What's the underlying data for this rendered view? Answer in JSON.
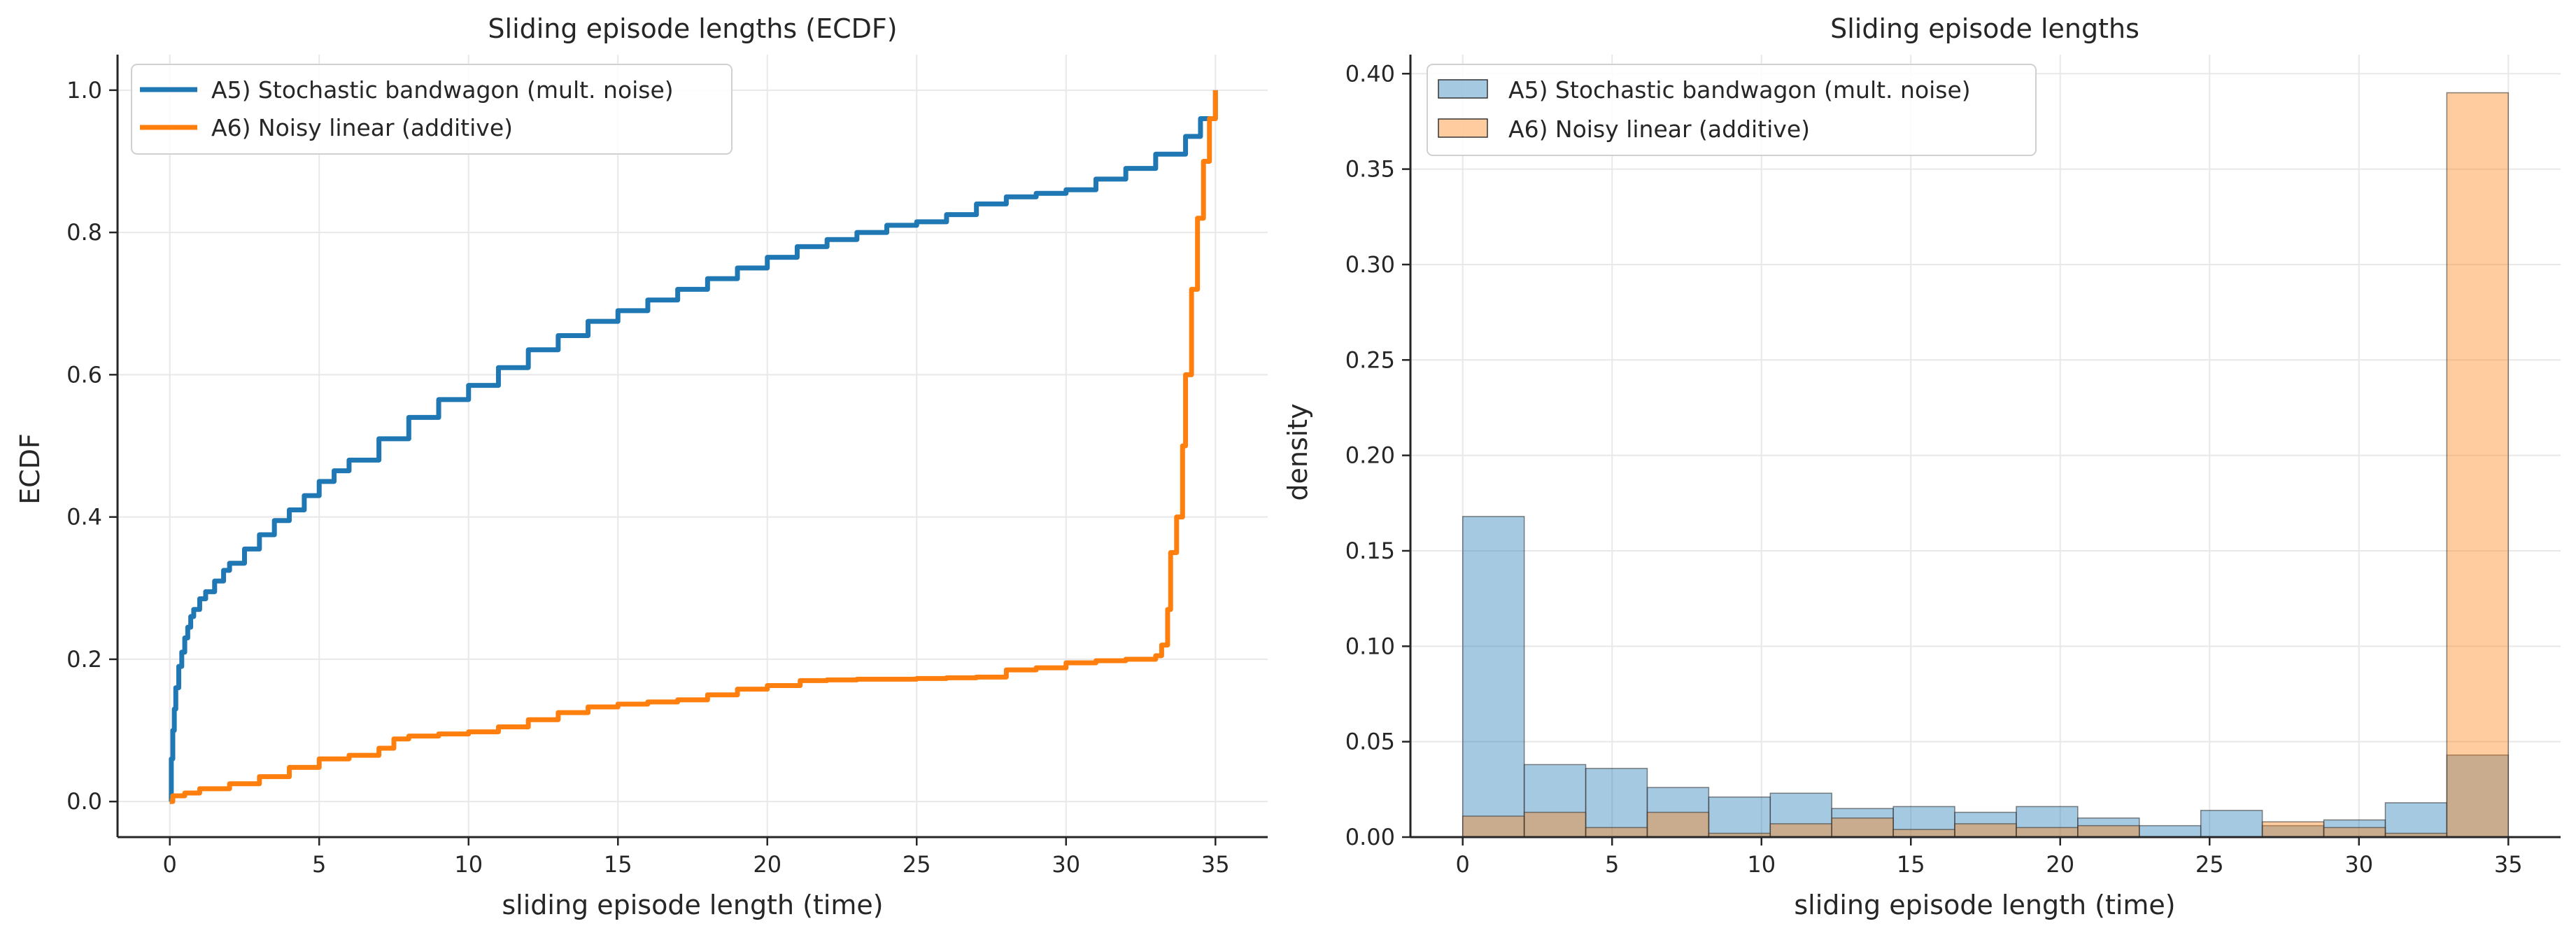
{
  "chart_data": [
    {
      "type": "line",
      "title": "Sliding episode lengths (ECDF)",
      "xlabel": "sliding episode length (time)",
      "ylabel": "ECDF",
      "xlim": [
        -1.75,
        36.75
      ],
      "ylim": [
        -0.05,
        1.05
      ],
      "xticks": [
        0,
        5,
        10,
        15,
        20,
        25,
        30,
        35
      ],
      "xtick_labels": [
        "0",
        "5",
        "10",
        "15",
        "20",
        "25",
        "30",
        "35"
      ],
      "yticks": [
        0.0,
        0.2,
        0.4,
        0.6,
        0.8,
        1.0
      ],
      "ytick_labels": [
        "0.0",
        "0.2",
        "0.4",
        "0.6",
        "0.8",
        "1.0"
      ],
      "grid": true,
      "legend_position": "upper-left",
      "series": [
        {
          "name": "A5) Stochastic bandwagon (mult. noise)",
          "color": "#1f77b4",
          "x": [
            0.0,
            0.05,
            0.1,
            0.15,
            0.2,
            0.3,
            0.4,
            0.5,
            0.6,
            0.7,
            0.8,
            1.0,
            1.2,
            1.5,
            1.8,
            2.0,
            2.5,
            3.0,
            3.5,
            4.0,
            4.5,
            5.0,
            5.5,
            6.0,
            7.0,
            8.0,
            9.0,
            10.0,
            11.0,
            12.0,
            13.0,
            14.0,
            15.0,
            16.0,
            17.0,
            18.0,
            19.0,
            20.0,
            21.0,
            22.0,
            23.0,
            24.0,
            25.0,
            26.0,
            27.0,
            28.0,
            29.0,
            30.0,
            31.0,
            32.0,
            33.0,
            34.0,
            34.5,
            35.0
          ],
          "y": [
            0.0,
            0.06,
            0.1,
            0.13,
            0.16,
            0.19,
            0.21,
            0.23,
            0.245,
            0.26,
            0.27,
            0.285,
            0.295,
            0.31,
            0.325,
            0.335,
            0.355,
            0.375,
            0.395,
            0.41,
            0.43,
            0.45,
            0.465,
            0.48,
            0.51,
            0.54,
            0.565,
            0.585,
            0.61,
            0.635,
            0.655,
            0.675,
            0.69,
            0.705,
            0.72,
            0.735,
            0.75,
            0.765,
            0.78,
            0.79,
            0.8,
            0.81,
            0.815,
            0.825,
            0.84,
            0.85,
            0.855,
            0.86,
            0.875,
            0.89,
            0.91,
            0.935,
            0.96,
            1.0
          ]
        },
        {
          "name": "A6) Noisy linear (additive)",
          "color": "#ff7f0e",
          "x": [
            0.0,
            0.1,
            0.5,
            1.0,
            2.0,
            3.0,
            4.0,
            5.0,
            6.0,
            7.0,
            7.5,
            8.0,
            9.0,
            10.0,
            11.0,
            12.0,
            13.0,
            14.0,
            15.0,
            16.0,
            17.0,
            18.0,
            19.0,
            20.0,
            21.0,
            21.1,
            22.0,
            23.0,
            24.0,
            25.0,
            26.0,
            27.0,
            28.0,
            29.0,
            30.0,
            31.0,
            32.0,
            33.0,
            33.2,
            33.4,
            33.5,
            33.7,
            33.9,
            34.0,
            34.2,
            34.4,
            34.6,
            34.8,
            35.0
          ],
          "y": [
            0.0,
            0.008,
            0.012,
            0.018,
            0.025,
            0.035,
            0.048,
            0.06,
            0.065,
            0.075,
            0.088,
            0.092,
            0.095,
            0.098,
            0.105,
            0.115,
            0.125,
            0.133,
            0.137,
            0.14,
            0.143,
            0.15,
            0.158,
            0.163,
            0.163,
            0.17,
            0.171,
            0.172,
            0.172,
            0.173,
            0.174,
            0.175,
            0.185,
            0.188,
            0.195,
            0.198,
            0.2,
            0.205,
            0.22,
            0.27,
            0.35,
            0.4,
            0.5,
            0.6,
            0.72,
            0.82,
            0.9,
            0.96,
            1.0
          ]
        }
      ]
    },
    {
      "type": "bar",
      "title": "Sliding episode lengths",
      "xlabel": "sliding episode length (time)",
      "ylabel": "density",
      "xlim": [
        -1.75,
        36.75
      ],
      "ylim": [
        0.0,
        0.41
      ],
      "xticks": [
        0,
        5,
        10,
        15,
        20,
        25,
        30,
        35
      ],
      "xtick_labels": [
        "0",
        "5",
        "10",
        "15",
        "20",
        "25",
        "30",
        "35"
      ],
      "yticks": [
        0.0,
        0.05,
        0.1,
        0.15,
        0.2,
        0.25,
        0.3,
        0.35,
        0.4
      ],
      "ytick_labels": [
        "0.00",
        "0.05",
        "0.10",
        "0.15",
        "0.20",
        "0.25",
        "0.30",
        "0.35",
        "0.40"
      ],
      "grid": true,
      "legend_position": "upper-left",
      "bin_edges": [
        0.0,
        2.0588,
        4.1176,
        6.1765,
        8.2353,
        10.2941,
        12.3529,
        14.4118,
        16.4706,
        18.5294,
        20.5882,
        22.6471,
        24.7059,
        26.7647,
        28.8235,
        30.8824,
        32.9412,
        35.0
      ],
      "series": [
        {
          "name": "A5) Stochastic bandwagon (mult. noise)",
          "color": "#1f77b4",
          "values": [
            0.168,
            0.038,
            0.036,
            0.026,
            0.021,
            0.023,
            0.015,
            0.016,
            0.013,
            0.016,
            0.01,
            0.006,
            0.014,
            0.006,
            0.009,
            0.018,
            0.043
          ]
        },
        {
          "name": "A6) Noisy linear (additive)",
          "color": "#ff7f0e",
          "values": [
            0.011,
            0.013,
            0.005,
            0.013,
            0.002,
            0.007,
            0.01,
            0.004,
            0.007,
            0.005,
            0.006,
            0.0,
            0.0,
            0.008,
            0.005,
            0.002,
            0.39
          ]
        }
      ]
    }
  ]
}
